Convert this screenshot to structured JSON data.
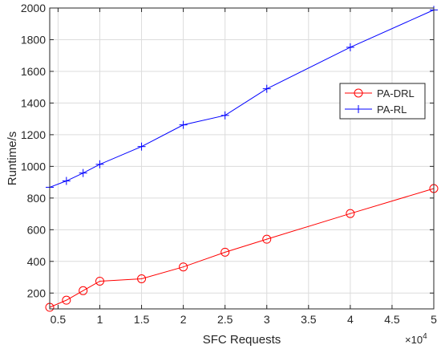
{
  "chart_data": {
    "type": "line",
    "xlabel": "SFC Requests",
    "ylabel": "Runtime/s",
    "x_exponent_label": "×10",
    "x_exponent": "4",
    "xlim": [
      0.4,
      5
    ],
    "ylim": [
      100,
      2000
    ],
    "x_ticks": [
      0.5,
      1,
      1.5,
      2,
      2.5,
      3,
      3.5,
      4,
      4.5,
      5
    ],
    "x_tick_labels": [
      "0.5",
      "1",
      "1.5",
      "2",
      "2.5",
      "3",
      "3.5",
      "4",
      "4.5",
      "5"
    ],
    "y_ticks": [
      200,
      400,
      600,
      800,
      1000,
      1200,
      1400,
      1600,
      1800,
      2000
    ],
    "y_tick_labels": [
      "200",
      "400",
      "600",
      "800",
      "1000",
      "1200",
      "1400",
      "1600",
      "1800",
      "2000"
    ],
    "grid": true,
    "legend_position": "right",
    "series": [
      {
        "name": "PA-DRL",
        "color": "#ff0000",
        "marker": "circle",
        "x": [
          0.4,
          0.6,
          0.8,
          1.0,
          1.5,
          2.0,
          2.5,
          3.0,
          4.0,
          5.0
        ],
        "values": [
          110,
          155,
          215,
          275,
          290,
          365,
          458,
          540,
          702,
          860
        ]
      },
      {
        "name": "PA-RL",
        "color": "#0000ff",
        "marker": "plus",
        "x": [
          0.4,
          0.6,
          0.8,
          1.0,
          1.5,
          2.0,
          2.5,
          3.0,
          4.0,
          5.0
        ],
        "values": [
          868,
          908,
          958,
          1013,
          1125,
          1262,
          1322,
          1490,
          1752,
          1988
        ]
      }
    ]
  }
}
